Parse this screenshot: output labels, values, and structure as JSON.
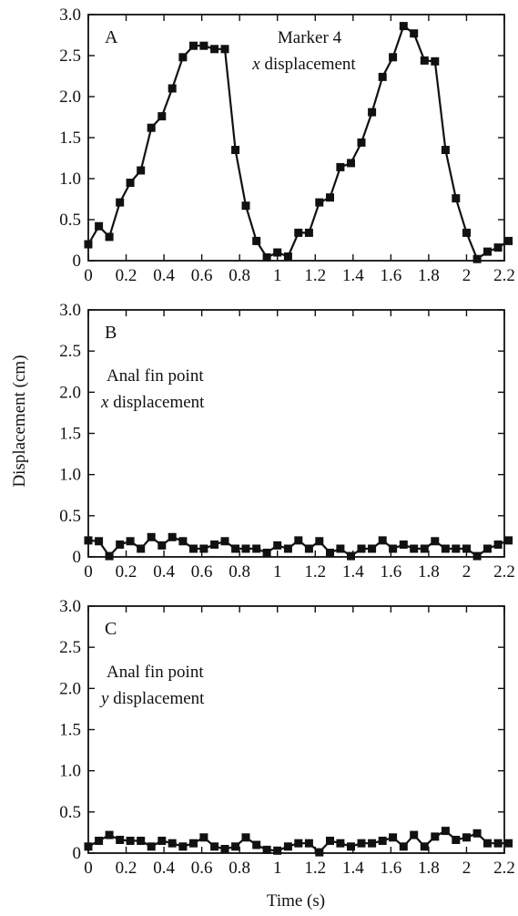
{
  "chart_data": {
    "type": "line",
    "ylabel": "Displacement (cm)",
    "xlabel": "Time (s)",
    "xlim": [
      0,
      2.2
    ],
    "ylim": [
      0,
      3.0
    ],
    "x_ticks": [
      "0",
      "0.2",
      "0.4",
      "0.6",
      "0.8",
      "1",
      "1.2",
      "1.4",
      "1.6",
      "1.8",
      "2",
      "2.2"
    ],
    "y_ticks": [
      "0",
      "0.5",
      "1.0",
      "1.5",
      "2.0",
      "2.5",
      "3.0"
    ],
    "grid": false,
    "colors": {
      "line": "#111111",
      "frame": "#111111"
    },
    "x": [
      0,
      0.056,
      0.111,
      0.167,
      0.222,
      0.278,
      0.333,
      0.389,
      0.444,
      0.5,
      0.556,
      0.611,
      0.667,
      0.722,
      0.778,
      0.833,
      0.889,
      0.944,
      1.0,
      1.056,
      1.111,
      1.167,
      1.222,
      1.278,
      1.333,
      1.389,
      1.444,
      1.5,
      1.556,
      1.611,
      1.667,
      1.722,
      1.778,
      1.833,
      1.889,
      1.944,
      2.0,
      2.056,
      2.111,
      2.167,
      2.222
    ],
    "panels": [
      {
        "label": "A",
        "annotation": [
          "Marker 4",
          "x displacement"
        ],
        "series": [
          {
            "values": [
              0.2,
              0.42,
              0.29,
              0.71,
              0.95,
              1.1,
              1.62,
              1.76,
              2.1,
              2.48,
              2.62,
              2.62,
              2.58,
              2.58,
              1.35,
              0.67,
              0.24,
              0.04,
              0.1,
              0.05,
              0.34,
              0.34,
              0.71,
              0.77,
              1.14,
              1.19,
              1.44,
              1.81,
              2.24,
              2.48,
              2.86,
              2.77,
              2.44,
              2.43,
              1.35,
              0.76,
              0.34,
              0.02,
              0.11,
              0.16,
              0.24
            ]
          }
        ]
      },
      {
        "label": "B",
        "annotation": [
          "Anal fin point",
          "x displacement"
        ],
        "series": [
          {
            "values": [
              0.2,
              0.19,
              0.01,
              0.15,
              0.19,
              0.1,
              0.24,
              0.14,
              0.24,
              0.19,
              0.1,
              0.1,
              0.15,
              0.19,
              0.1,
              0.1,
              0.1,
              0.05,
              0.14,
              0.1,
              0.2,
              0.1,
              0.19,
              0.05,
              0.1,
              0.01,
              0.1,
              0.1,
              0.2,
              0.1,
              0.15,
              0.1,
              0.1,
              0.19,
              0.1,
              0.1,
              0.1,
              0.01,
              0.1,
              0.15,
              0.2
            ]
          }
        ]
      },
      {
        "label": "C",
        "annotation": [
          "Anal fin point",
          "y displacement"
        ],
        "series": [
          {
            "values": [
              0.08,
              0.15,
              0.22,
              0.16,
              0.15,
              0.15,
              0.08,
              0.15,
              0.12,
              0.08,
              0.12,
              0.19,
              0.08,
              0.05,
              0.08,
              0.19,
              0.1,
              0.04,
              0.03,
              0.08,
              0.12,
              0.12,
              0.01,
              0.15,
              0.12,
              0.08,
              0.12,
              0.12,
              0.15,
              0.19,
              0.08,
              0.22,
              0.08,
              0.2,
              0.27,
              0.16,
              0.19,
              0.24,
              0.12,
              0.12,
              0.12
            ]
          }
        ]
      }
    ]
  }
}
